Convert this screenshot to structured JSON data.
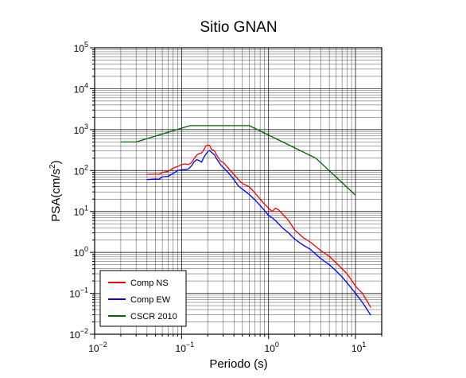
{
  "chart_data": {
    "type": "line",
    "title": "Sitio GNAN",
    "xlabel": "Periodo (s)",
    "ylabel": "PSA(cm/s2)",
    "xscale": "log",
    "yscale": "log",
    "xlim": [
      0.01,
      20
    ],
    "ylim": [
      0.01,
      100000
    ],
    "grid": true,
    "legend_position": "bottom-left",
    "x_tick_labels": [
      {
        "value": 0.01,
        "base": "10",
        "exp": "−2"
      },
      {
        "value": 0.1,
        "base": "10",
        "exp": "−1"
      },
      {
        "value": 1,
        "base": "10",
        "exp": "0"
      },
      {
        "value": 10,
        "base": "10",
        "exp": "1"
      }
    ],
    "y_tick_labels": [
      {
        "value": 0.01,
        "base": "10",
        "exp": "−2"
      },
      {
        "value": 0.1,
        "base": "10",
        "exp": "−1"
      },
      {
        "value": 1,
        "base": "10",
        "exp": "0"
      },
      {
        "value": 10,
        "base": "10",
        "exp": "1"
      },
      {
        "value": 100,
        "base": "10",
        "exp": "2"
      },
      {
        "value": 1000,
        "base": "10",
        "exp": "3"
      },
      {
        "value": 10000,
        "base": "10",
        "exp": "4"
      },
      {
        "value": 100000,
        "base": "10",
        "exp": "5"
      }
    ],
    "series": [
      {
        "name": "Comp NS",
        "color": "#ff0000",
        "points": [
          [
            0.04,
            80
          ],
          [
            0.05,
            82
          ],
          [
            0.055,
            80
          ],
          [
            0.06,
            90
          ],
          [
            0.07,
            95
          ],
          [
            0.08,
            115
          ],
          [
            0.09,
            125
          ],
          [
            0.1,
            140
          ],
          [
            0.11,
            145
          ],
          [
            0.12,
            140
          ],
          [
            0.13,
            155
          ],
          [
            0.14,
            200
          ],
          [
            0.15,
            240
          ],
          [
            0.16,
            260
          ],
          [
            0.17,
            270
          ],
          [
            0.18,
            320
          ],
          [
            0.19,
            400
          ],
          [
            0.2,
            420
          ],
          [
            0.21,
            410
          ],
          [
            0.22,
            330
          ],
          [
            0.24,
            300
          ],
          [
            0.25,
            250
          ],
          [
            0.28,
            170
          ],
          [
            0.3,
            160
          ],
          [
            0.35,
            110
          ],
          [
            0.4,
            80
          ],
          [
            0.45,
            60
          ],
          [
            0.5,
            48
          ],
          [
            0.55,
            44
          ],
          [
            0.6,
            40
          ],
          [
            0.7,
            28
          ],
          [
            0.8,
            20
          ],
          [
            0.9,
            15
          ],
          [
            1.0,
            12
          ],
          [
            1.1,
            10
          ],
          [
            1.2,
            12
          ],
          [
            1.3,
            11
          ],
          [
            1.5,
            8
          ],
          [
            1.7,
            6
          ],
          [
            2.0,
            3.5
          ],
          [
            2.5,
            2.3
          ],
          [
            3.0,
            1.8
          ],
          [
            4.0,
            1.1
          ],
          [
            5.0,
            0.8
          ],
          [
            6.0,
            0.55
          ],
          [
            7.0,
            0.4
          ],
          [
            8.0,
            0.3
          ],
          [
            10.0,
            0.15
          ],
          [
            12.0,
            0.1
          ],
          [
            15.0,
            0.045
          ]
        ]
      },
      {
        "name": "Comp EW",
        "color": "#0000ff",
        "points": [
          [
            0.04,
            60
          ],
          [
            0.05,
            62
          ],
          [
            0.055,
            61
          ],
          [
            0.06,
            70
          ],
          [
            0.07,
            72
          ],
          [
            0.08,
            85
          ],
          [
            0.09,
            100
          ],
          [
            0.1,
            105
          ],
          [
            0.11,
            105
          ],
          [
            0.12,
            110
          ],
          [
            0.13,
            130
          ],
          [
            0.14,
            165
          ],
          [
            0.15,
            185
          ],
          [
            0.16,
            175
          ],
          [
            0.17,
            160
          ],
          [
            0.18,
            210
          ],
          [
            0.19,
            250
          ],
          [
            0.2,
            290
          ],
          [
            0.21,
            310
          ],
          [
            0.22,
            280
          ],
          [
            0.24,
            240
          ],
          [
            0.25,
            200
          ],
          [
            0.28,
            140
          ],
          [
            0.3,
            120
          ],
          [
            0.35,
            85
          ],
          [
            0.4,
            60
          ],
          [
            0.45,
            42
          ],
          [
            0.5,
            35
          ],
          [
            0.55,
            30
          ],
          [
            0.6,
            26
          ],
          [
            0.7,
            19
          ],
          [
            0.8,
            14
          ],
          [
            0.9,
            10.5
          ],
          [
            1.0,
            8
          ],
          [
            1.1,
            7
          ],
          [
            1.2,
            6
          ],
          [
            1.3,
            5
          ],
          [
            1.5,
            3.7
          ],
          [
            1.7,
            3
          ],
          [
            2.0,
            2.1
          ],
          [
            2.5,
            1.5
          ],
          [
            3.0,
            1.2
          ],
          [
            4.0,
            0.7
          ],
          [
            5.0,
            0.5
          ],
          [
            6.0,
            0.35
          ],
          [
            7.0,
            0.25
          ],
          [
            8.0,
            0.18
          ],
          [
            10.0,
            0.1
          ],
          [
            12.0,
            0.06
          ],
          [
            15.0,
            0.029
          ]
        ]
      },
      {
        "name": "CSCR 2010",
        "color": "#006400",
        "points": [
          [
            0.02,
            500
          ],
          [
            0.03,
            500
          ],
          [
            0.125,
            1250
          ],
          [
            0.6,
            1250
          ],
          [
            3.5,
            200
          ],
          [
            10.0,
            25
          ]
        ]
      }
    ]
  }
}
